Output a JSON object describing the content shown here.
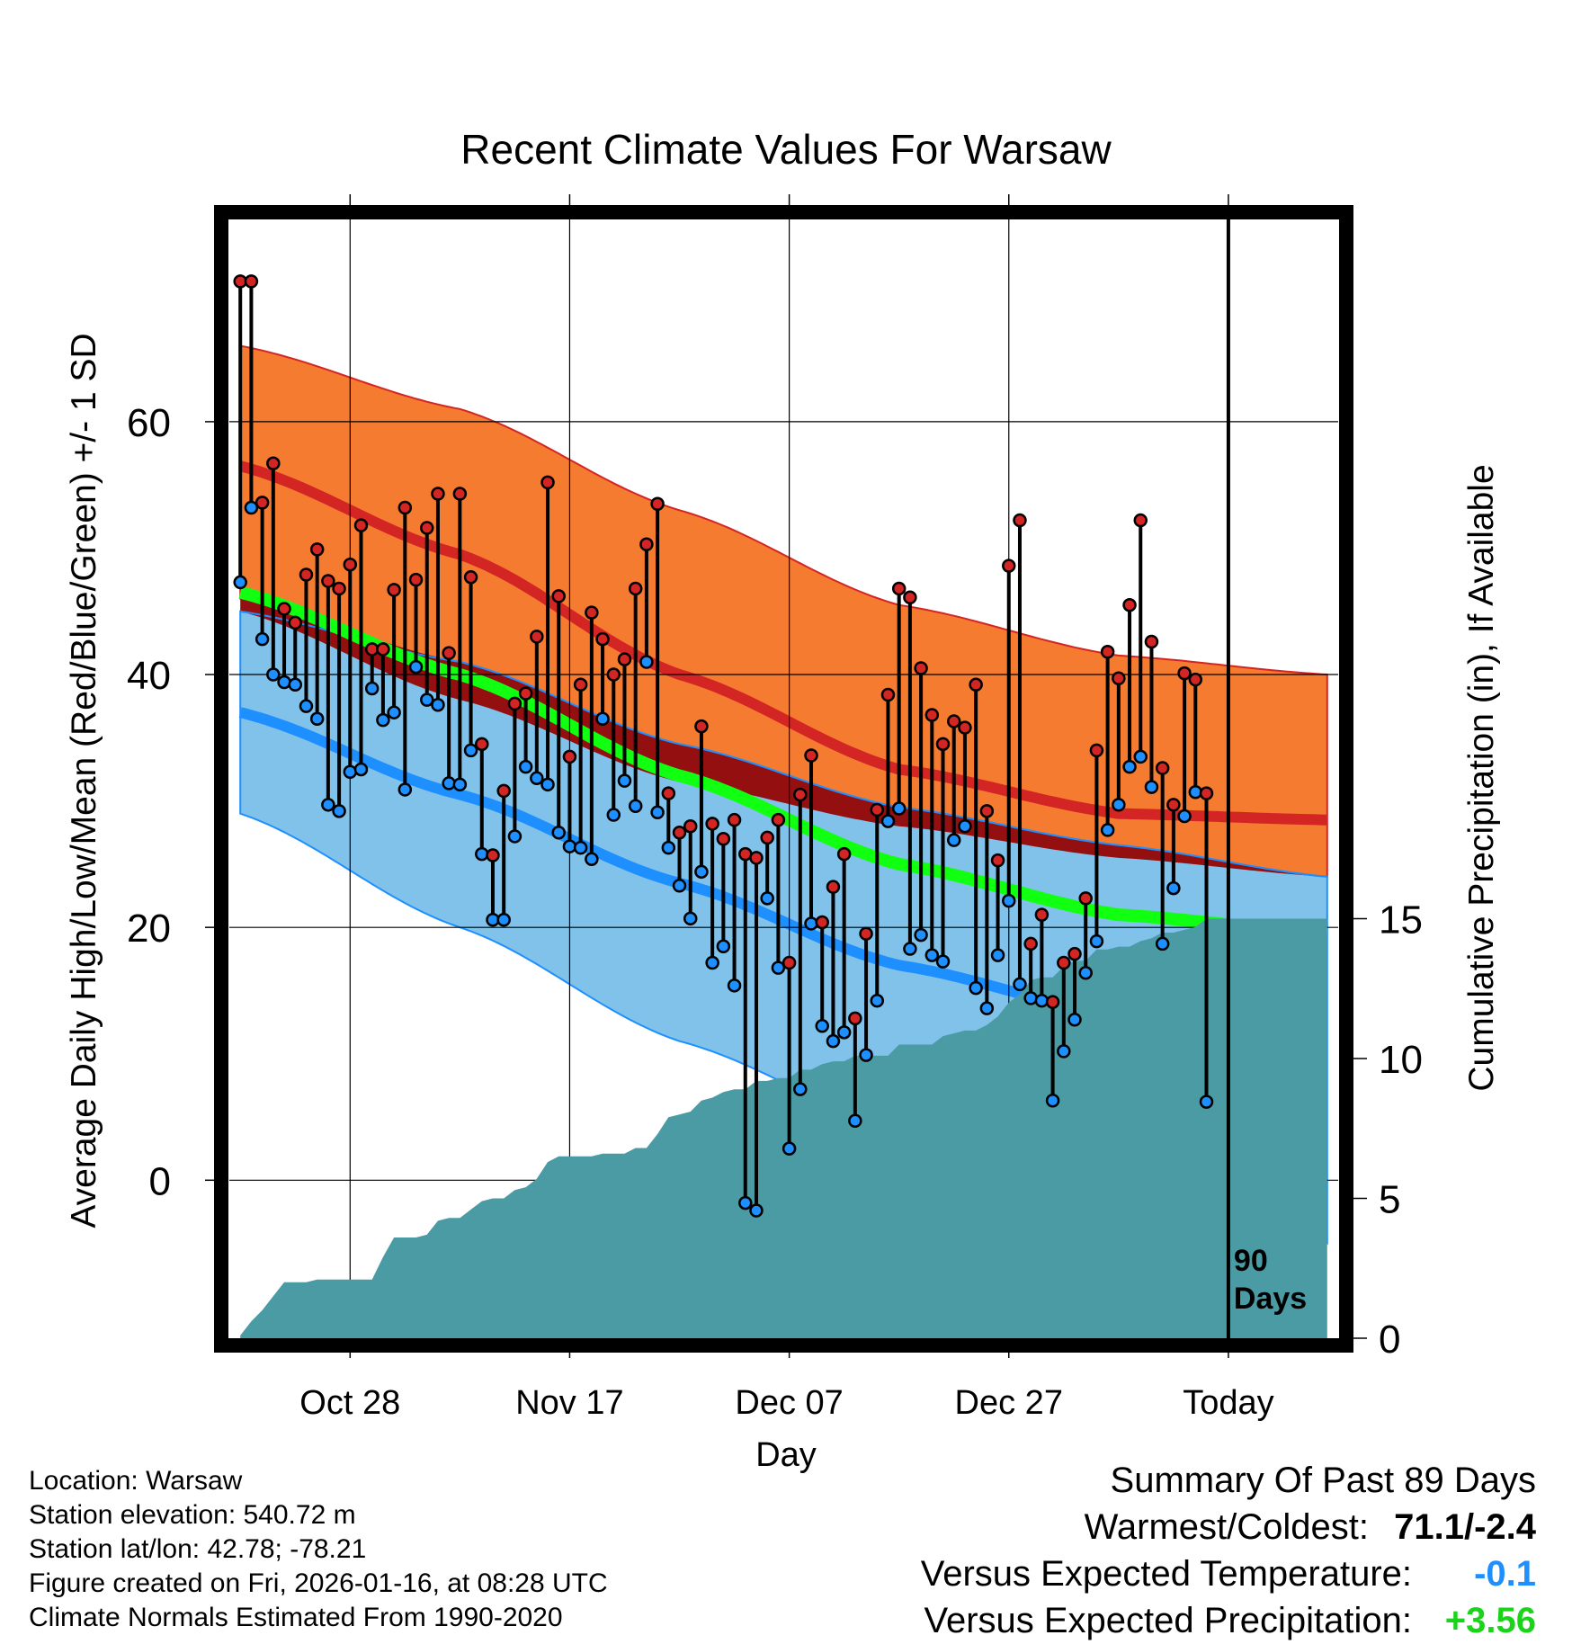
{
  "chart_data": {
    "type": "line",
    "title": "Recent Climate Values For Warsaw",
    "xlabel": "Day",
    "ylabel": "Average Daily High/Low/Mean (Red/Blue/Green) +/- 1 SD",
    "y2label": "Cumulative Precipitation (in), If Available",
    "x_ticks": [
      {
        "day": 10,
        "label": "Oct 28"
      },
      {
        "day": 30,
        "label": "Nov 17"
      },
      {
        "day": 50,
        "label": "Dec 07"
      },
      {
        "day": 70,
        "label": "Dec 27"
      },
      {
        "day": 90,
        "label": "Today"
      }
    ],
    "xlim": [
      -1,
      100
    ],
    "ylim": [
      -12.5,
      76
    ],
    "y_ticks": [
      0,
      20,
      40,
      60
    ],
    "y2lim": [
      0,
      40
    ],
    "y2_ticks": [
      0,
      5,
      10,
      15
    ],
    "today_marker": {
      "day": 90,
      "label_line1": "90",
      "label_line2": "Days"
    },
    "colors": {
      "high_band": "#f47b30",
      "high_mean": "#d42525",
      "low_band": "#80c2ea",
      "low_mean": "#1e8fff",
      "mean_band": "#940f10",
      "mean_line": "#11ff11",
      "precip": "#4a9ba4",
      "obs_high": "#d42525",
      "obs_low": "#1e8fff"
    },
    "normals": {
      "days": [
        0,
        20,
        40,
        60,
        80,
        99
      ],
      "high_upper": [
        66,
        61,
        53,
        45.5,
        41.5,
        40
      ],
      "high_mean": [
        56.5,
        49.5,
        40,
        32.5,
        29,
        28.5
      ],
      "high_lower": [
        46,
        38,
        31.5,
        28,
        25.5,
        24
      ],
      "low_upper": [
        45,
        41,
        34.5,
        29.5,
        26.5,
        24
      ],
      "low_mean": [
        37,
        30.5,
        23.5,
        17,
        13,
        11
      ],
      "low_lower": [
        29,
        20,
        11,
        4,
        -2,
        -5
      ],
      "mean_mean": [
        46.5,
        40,
        32,
        25,
        21,
        19.5
      ]
    },
    "series": [
      {
        "name": "Daily High",
        "values": [
          71.1,
          71.1,
          53.6,
          56.7,
          45.2,
          44.1,
          47.9,
          49.9,
          47.4,
          46.8,
          48.7,
          51.8,
          42,
          42,
          46.7,
          53.2,
          47.5,
          51.6,
          54.3,
          41.7,
          54.3,
          47.7,
          34.5,
          25.7,
          30.8,
          37.7,
          38.5,
          43,
          55.2,
          46.2,
          33.5,
          39.2,
          44.9,
          42.8,
          40,
          41.2,
          46.8,
          50.3,
          53.5,
          30.6,
          27.5,
          28,
          35.9,
          28.2,
          27,
          28.5,
          25.8,
          25.5,
          27.1,
          28.5,
          17.2,
          30.5,
          33.6,
          20.4,
          23.2,
          25.8,
          12.8,
          19.5,
          29.3,
          38.4,
          46.8,
          46.1,
          40.5,
          36.8,
          34.5,
          36.3,
          35.8,
          39.2,
          29.2,
          25.3,
          48.6,
          52.2,
          18.7,
          21,
          14.1,
          17.2,
          17.9,
          22.3,
          34,
          41.8,
          39.7,
          45.5,
          52.2,
          42.6,
          32.6,
          29.7,
          40.1,
          39.6,
          30.6
        ]
      },
      {
        "name": "Daily Low",
        "values": [
          47.3,
          53.2,
          42.8,
          40,
          39.4,
          39.2,
          37.5,
          36.5,
          29.7,
          29.2,
          32.3,
          32.5,
          38.9,
          36.4,
          37,
          30.9,
          40.6,
          38,
          37.6,
          31.4,
          31.3,
          34,
          25.8,
          20.6,
          20.6,
          27.2,
          32.7,
          31.8,
          31.3,
          27.5,
          26.4,
          26.3,
          25.4,
          36.5,
          28.9,
          31.6,
          29.6,
          41,
          29.1,
          26.3,
          23.3,
          20.7,
          24.4,
          17.2,
          18.5,
          15.4,
          -1.8,
          -2.4,
          22.3,
          16.8,
          2.5,
          7.2,
          20.3,
          12.2,
          11,
          11.7,
          4.7,
          9.9,
          14.2,
          28.4,
          29.4,
          18.3,
          19.4,
          17.8,
          17.3,
          26.9,
          28,
          15.2,
          13.6,
          17.8,
          22.1,
          15.5,
          14.4,
          14.2,
          6.3,
          10.2,
          12.7,
          16.4,
          18.9,
          27.7,
          29.7,
          32.7,
          33.5,
          31.1,
          18.7,
          23.1,
          28.8,
          30.7,
          6.2
        ]
      },
      {
        "name": "Cumulative Precipitation",
        "x": [
          0,
          1,
          2,
          3,
          4,
          5,
          6,
          7,
          8,
          9,
          10,
          11,
          12,
          13,
          14,
          15,
          16,
          17,
          18,
          19,
          20,
          21,
          22,
          23,
          24,
          25,
          26,
          27,
          28,
          29,
          30,
          31,
          32,
          33,
          34,
          35,
          36,
          37,
          38,
          39,
          40,
          41,
          42,
          43,
          44,
          45,
          46,
          47,
          48,
          49,
          50,
          51,
          52,
          53,
          54,
          55,
          56,
          57,
          58,
          59,
          60,
          61,
          62,
          63,
          64,
          65,
          66,
          67,
          68,
          69,
          70,
          71,
          72,
          73,
          74,
          75,
          76,
          77,
          78,
          79,
          80,
          81,
          82,
          83,
          84,
          85,
          86,
          87,
          88,
          89,
          90,
          91,
          92,
          93,
          94,
          95,
          96,
          97,
          98,
          99
        ],
        "values": [
          0.1,
          0.6,
          1,
          1.5,
          2,
          2,
          2,
          2.1,
          2.1,
          2.1,
          2.1,
          2.1,
          2.1,
          2.9,
          3.6,
          3.6,
          3.6,
          3.7,
          4.2,
          4.3,
          4.3,
          4.6,
          4.9,
          5,
          5,
          5.3,
          5.4,
          5.7,
          6.3,
          6.5,
          6.5,
          6.5,
          6.5,
          6.6,
          6.6,
          6.6,
          6.8,
          6.8,
          7.3,
          7.9,
          8,
          8.1,
          8.5,
          8.6,
          8.8,
          8.9,
          8.9,
          9.2,
          9.2,
          9.3,
          9.3,
          9.6,
          9.6,
          9.8,
          9.9,
          9.9,
          10.1,
          10.1,
          10.1,
          10.1,
          10.5,
          10.5,
          10.5,
          10.5,
          10.8,
          10.9,
          11,
          11,
          11.2,
          11.5,
          12,
          12.3,
          12.8,
          12.9,
          12.9,
          13.3,
          13.5,
          13.5,
          13.9,
          13.9,
          14,
          14,
          14.2,
          14.3,
          14.5,
          14.5,
          14.6,
          14.7,
          15,
          15,
          15,
          15,
          15,
          15,
          15,
          15,
          15,
          15,
          15,
          15
        ]
      }
    ]
  },
  "footer": {
    "location": "Location: Warsaw",
    "elevation": "Station elevation: 540.72 m",
    "latlon": "Station lat/lon: 42.78; -78.21",
    "created": "Figure created on Fri, 2026-01-16, at 08:28 UTC",
    "normals": "Climate Normals Estimated From 1990-2020"
  },
  "summary": {
    "heading": "Summary Of Past 89 Days",
    "warm_cold_label": "Warmest/Coldest:",
    "warm_cold_value": "71.1/-2.4",
    "temp_label": "Versus Expected Temperature:",
    "temp_value": "-0.1",
    "precip_label": "Versus Expected Precipitation:",
    "precip_value": "+3.56"
  }
}
